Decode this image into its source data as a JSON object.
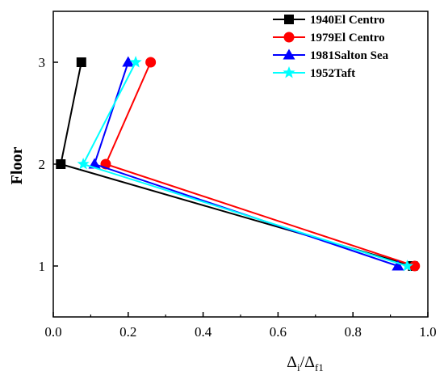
{
  "chart_data": {
    "type": "line",
    "xlabel": "",
    "ylabel": "Floor",
    "xlabel_parts": {
      "main1": "Δ",
      "sub1": "i",
      "slash": "/",
      "main2": "Δ",
      "sub2": "f1"
    },
    "xlim": [
      0.0,
      1.0
    ],
    "ylim": [
      0.5,
      3.5
    ],
    "x_ticks": [
      0.0,
      0.2,
      0.4,
      0.6,
      0.8,
      1.0
    ],
    "x_tick_labels": [
      "0.0",
      "0.2",
      "0.4",
      "0.6",
      "0.8",
      "1.0"
    ],
    "y_ticks": [
      1,
      2,
      3
    ],
    "y_tick_labels": [
      "1",
      "2",
      "3"
    ],
    "grid": false,
    "legend_position": "top-right",
    "series": [
      {
        "name": "1940El Centro",
        "color": "#000000",
        "marker": "square",
        "x": [
          0.96,
          0.02,
          0.075
        ],
        "y": [
          1,
          2,
          3
        ]
      },
      {
        "name": "1979El Centro",
        "color": "#ff0000",
        "marker": "circle",
        "x": [
          0.965,
          0.14,
          0.26
        ],
        "y": [
          1,
          2,
          3
        ]
      },
      {
        "name": "1981Salton Sea",
        "color": "#0000ff",
        "marker": "triangle",
        "x": [
          0.92,
          0.11,
          0.2
        ],
        "y": [
          1,
          2,
          3
        ]
      },
      {
        "name": "1952Taft",
        "color": "#00ffff",
        "marker": "star",
        "x": [
          0.945,
          0.08,
          0.22
        ],
        "y": [
          1,
          2,
          3
        ]
      }
    ]
  }
}
